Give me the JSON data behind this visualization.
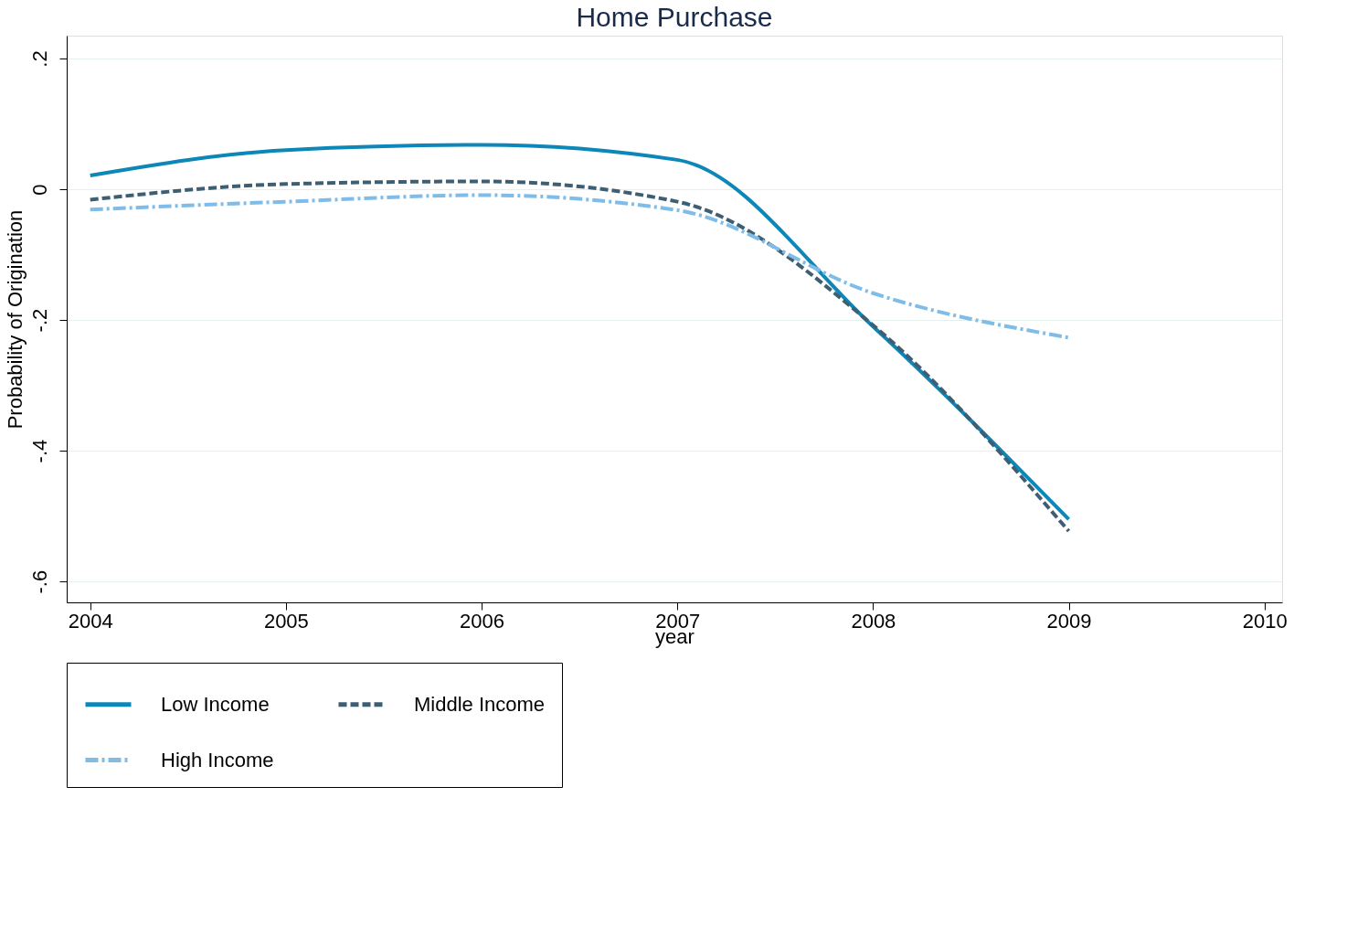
{
  "chart_data": {
    "type": "line",
    "title": "Home Purchase",
    "xlabel": "year",
    "ylabel": "Probability of Origination",
    "x": [
      2004,
      2005,
      2006,
      2007,
      2008,
      2009
    ],
    "series": [
      {
        "name": "Low Income",
        "color": "#0d87b8",
        "line_style": "solid",
        "values": [
          0.021,
          0.06,
          0.068,
          0.045,
          -0.21,
          -0.505
        ]
      },
      {
        "name": "Middle Income",
        "color": "#3e5f73",
        "line_style": "dashed",
        "values": [
          -0.016,
          0.008,
          0.012,
          -0.019,
          -0.208,
          -0.523
        ]
      },
      {
        "name": "High Income",
        "color": "#7fbde8",
        "line_style": "dashdot",
        "values": [
          -0.031,
          -0.019,
          -0.009,
          -0.032,
          -0.159,
          -0.227
        ]
      }
    ],
    "xlim": [
      2003.88,
      2010.09
    ],
    "xticks": [
      2004,
      2005,
      2006,
      2007,
      2008,
      2009,
      2010
    ],
    "ylim": [
      -0.632,
      0.235
    ],
    "yticks": [
      {
        "value": -0.6,
        "label": "-.6"
      },
      {
        "value": -0.4,
        "label": "-.4"
      },
      {
        "value": -0.2,
        "label": "-.2"
      },
      {
        "value": 0,
        "label": "0"
      },
      {
        "value": 0.2,
        "label": ".2"
      }
    ],
    "grid": "y",
    "legend": "bottom",
    "marker": "none"
  }
}
